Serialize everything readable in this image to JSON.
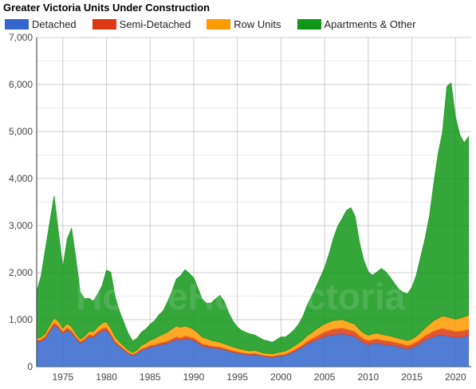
{
  "chart_data": {
    "type": "area",
    "stacked": true,
    "title": "Greater Victoria Units Under Construction",
    "watermark": "HouseHuntVictoria",
    "ylim": [
      0,
      7000
    ],
    "y_ticks": [
      0,
      1000,
      2000,
      3000,
      4000,
      5000,
      6000,
      7000
    ],
    "y_tick_labels": [
      "0",
      "1,000",
      "2,000",
      "3,000",
      "4,000",
      "5,000",
      "6,000",
      "7,000"
    ],
    "xlim": [
      1972,
      2021.8
    ],
    "x_ticks": [
      1975,
      1980,
      1985,
      1990,
      1995,
      2000,
      2005,
      2010,
      2015,
      2020
    ],
    "legend_position": "top",
    "grid": true,
    "x": [
      1972,
      1972.5,
      1973,
      1973.5,
      1974,
      1974.5,
      1975,
      1975.5,
      1976,
      1976.5,
      1977,
      1977.5,
      1978,
      1978.5,
      1979,
      1979.5,
      1980,
      1980.5,
      1981,
      1981.5,
      1982,
      1982.5,
      1983,
      1983.5,
      1984,
      1984.5,
      1985,
      1985.5,
      1986,
      1986.5,
      1987,
      1987.5,
      1988,
      1988.5,
      1989,
      1989.5,
      1990,
      1990.5,
      1991,
      1991.5,
      1992,
      1992.5,
      1993,
      1993.5,
      1994,
      1994.5,
      1995,
      1995.5,
      1996,
      1996.5,
      1997,
      1997.5,
      1998,
      1998.5,
      1999,
      1999.5,
      2000,
      2000.5,
      2001,
      2001.5,
      2002,
      2002.5,
      2003,
      2003.5,
      2004,
      2004.5,
      2005,
      2005.5,
      2006,
      2006.5,
      2007,
      2007.5,
      2008,
      2008.5,
      2009,
      2009.5,
      2010,
      2010.5,
      2011,
      2011.5,
      2012,
      2012.5,
      2013,
      2013.5,
      2014,
      2014.5,
      2015,
      2015.5,
      2016,
      2016.5,
      2017,
      2017.5,
      2018,
      2018.5,
      2019,
      2019.5,
      2020,
      2020.5,
      2021,
      2021.5
    ],
    "series": [
      {
        "name": "Detached",
        "color": "#3366cc",
        "values": [
          520,
          540,
          600,
          750,
          880,
          820,
          700,
          780,
          720,
          600,
          500,
          550,
          640,
          620,
          700,
          760,
          780,
          650,
          500,
          420,
          350,
          280,
          240,
          280,
          350,
          380,
          420,
          430,
          460,
          480,
          500,
          540,
          580,
          560,
          600,
          580,
          560,
          500,
          440,
          420,
          400,
          390,
          380,
          360,
          330,
          310,
          290,
          270,
          260,
          250,
          260,
          240,
          220,
          210,
          200,
          220,
          230,
          240,
          280,
          320,
          370,
          420,
          480,
          520,
          560,
          600,
          640,
          660,
          680,
          690,
          700,
          680,
          660,
          640,
          560,
          500,
          470,
          490,
          500,
          480,
          470,
          460,
          440,
          420,
          400,
          380,
          400,
          440,
          500,
          560,
          600,
          640,
          660,
          680,
          650,
          640,
          620,
          630,
          640,
          660
        ]
      },
      {
        "name": "Semi-Detached",
        "color": "#dc3912",
        "values": [
          40,
          40,
          45,
          50,
          55,
          50,
          45,
          50,
          45,
          40,
          35,
          40,
          45,
          45,
          50,
          55,
          55,
          50,
          40,
          35,
          30,
          25,
          20,
          25,
          30,
          30,
          35,
          35,
          40,
          40,
          45,
          50,
          55,
          55,
          55,
          55,
          50,
          50,
          45,
          45,
          40,
          40,
          40,
          35,
          35,
          30,
          30,
          30,
          25,
          25,
          25,
          25,
          20,
          20,
          20,
          20,
          25,
          25,
          30,
          35,
          40,
          45,
          60,
          70,
          80,
          90,
          100,
          110,
          120,
          120,
          125,
          120,
          115,
          110,
          100,
          90,
          85,
          85,
          90,
          90,
          85,
          85,
          80,
          80,
          80,
          75,
          80,
          85,
          90,
          100,
          110,
          120,
          130,
          140,
          140,
          135,
          130,
          130,
          130,
          135
        ]
      },
      {
        "name": "Row Units",
        "color": "#ff9900",
        "values": [
          40,
          50,
          60,
          80,
          100,
          90,
          70,
          90,
          80,
          60,
          50,
          55,
          70,
          80,
          100,
          110,
          120,
          110,
          90,
          70,
          60,
          50,
          40,
          50,
          70,
          90,
          110,
          130,
          150,
          170,
          190,
          210,
          230,
          220,
          210,
          200,
          180,
          160,
          140,
          130,
          120,
          110,
          100,
          90,
          85,
          80,
          75,
          70,
          65,
          60,
          60,
          55,
          50,
          50,
          50,
          55,
          60,
          65,
          70,
          80,
          90,
          100,
          120,
          130,
          150,
          160,
          170,
          175,
          180,
          180,
          175,
          170,
          160,
          150,
          130,
          120,
          115,
          120,
          125,
          120,
          115,
          110,
          105,
          100,
          100,
          100,
          110,
          120,
          140,
          160,
          190,
          220,
          240,
          260,
          270,
          260,
          260,
          270,
          290,
          300
        ]
      },
      {
        "name": "Apartments & Other",
        "color": "#109618",
        "values": [
          1000,
          1300,
          1800,
          2200,
          2600,
          1900,
          1300,
          1800,
          2100,
          1600,
          1000,
          800,
          700,
          650,
          700,
          800,
          1100,
          1200,
          850,
          650,
          500,
          350,
          250,
          250,
          280,
          300,
          340,
          380,
          450,
          500,
          650,
          800,
          1000,
          1100,
          1200,
          1150,
          1100,
          950,
          800,
          750,
          800,
          900,
          1000,
          900,
          700,
          550,
          450,
          400,
          380,
          360,
          330,
          300,
          280,
          270,
          250,
          280,
          320,
          300,
          320,
          350,
          400,
          500,
          650,
          780,
          900,
          1050,
          1200,
          1450,
          1750,
          2000,
          2150,
          2350,
          2450,
          2300,
          1850,
          1550,
          1350,
          1250,
          1300,
          1400,
          1350,
          1250,
          1150,
          1050,
          1000,
          1000,
          1100,
          1300,
          1600,
          1900,
          2300,
          2900,
          3500,
          3900,
          4900,
          5000,
          4300,
          3900,
          3700,
          3800
        ]
      }
    ]
  }
}
